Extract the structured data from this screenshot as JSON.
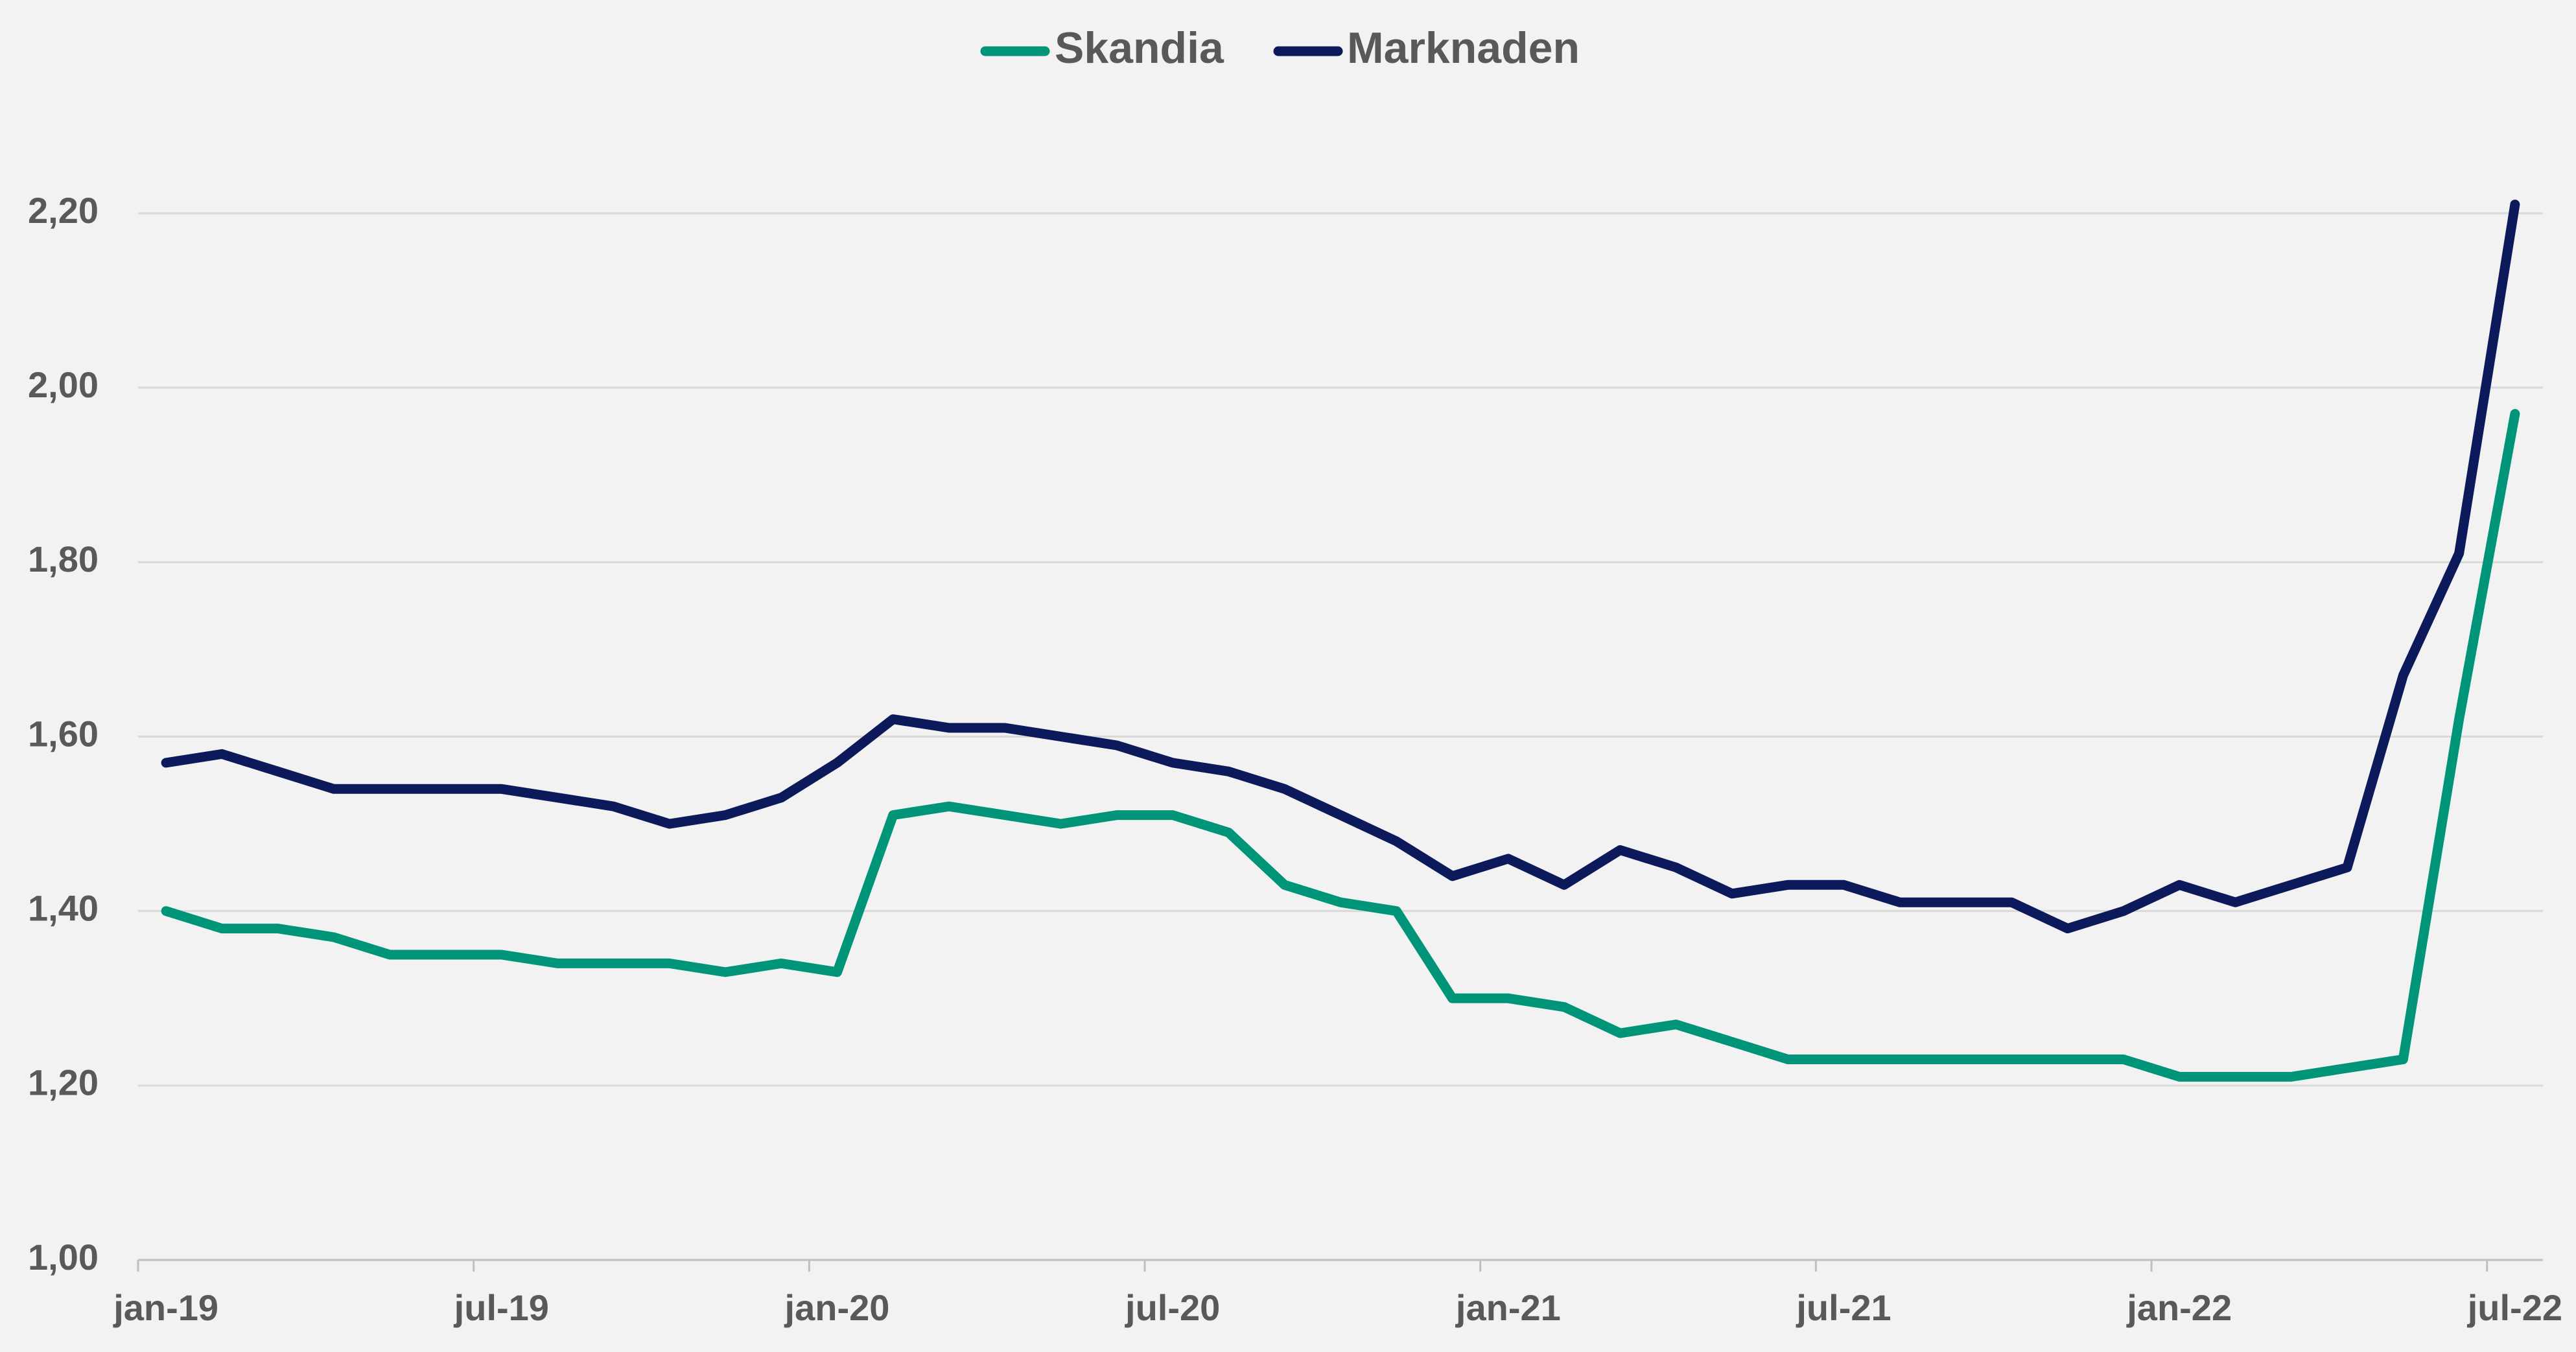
{
  "chart_data": {
    "type": "line",
    "categories": [
      "jan-19",
      null,
      null,
      null,
      null,
      null,
      "jul-19",
      null,
      null,
      null,
      null,
      null,
      "jan-20",
      null,
      null,
      null,
      null,
      null,
      "jul-20",
      null,
      null,
      null,
      null,
      null,
      "jan-21",
      null,
      null,
      null,
      null,
      null,
      "jul-21",
      null,
      null,
      null,
      null,
      null,
      "jan-22",
      null,
      null,
      null,
      null,
      null,
      "jul-22"
    ],
    "series": [
      {
        "name": "Skandia",
        "color": "#009579",
        "values": [
          1.4,
          1.38,
          1.38,
          1.37,
          1.35,
          1.35,
          1.35,
          1.34,
          1.34,
          1.34,
          1.33,
          1.34,
          1.33,
          1.51,
          1.52,
          1.51,
          1.5,
          1.51,
          1.51,
          1.49,
          1.43,
          1.41,
          1.4,
          1.3,
          1.3,
          1.29,
          1.26,
          1.27,
          1.25,
          1.23,
          1.23,
          1.23,
          1.23,
          1.23,
          1.23,
          1.23,
          1.21,
          1.21,
          1.21,
          1.22,
          1.23,
          1.62,
          1.97
        ]
      },
      {
        "name": "Marknaden",
        "color": "#0c1a5c",
        "values": [
          1.57,
          1.58,
          1.56,
          1.54,
          1.54,
          1.54,
          1.54,
          1.53,
          1.52,
          1.5,
          1.51,
          1.53,
          1.57,
          1.62,
          1.61,
          1.61,
          1.6,
          1.59,
          1.57,
          1.56,
          1.54,
          1.51,
          1.48,
          1.44,
          1.46,
          1.43,
          1.47,
          1.45,
          1.42,
          1.43,
          1.43,
          1.41,
          1.41,
          1.41,
          1.38,
          1.4,
          1.43,
          1.41,
          1.43,
          1.45,
          1.67,
          1.81,
          2.21
        ]
      }
    ],
    "ylim": [
      1.0,
      2.2
    ],
    "yticks": [
      {
        "value": 1.0,
        "label": "1,00"
      },
      {
        "value": 1.2,
        "label": "1,20"
      },
      {
        "value": 1.4,
        "label": "1,40"
      },
      {
        "value": 1.6,
        "label": "1,60"
      },
      {
        "value": 1.8,
        "label": "1,80"
      },
      {
        "value": 2.0,
        "label": "2,00"
      },
      {
        "value": 2.2,
        "label": "2,20"
      }
    ],
    "grid": true,
    "legend": "top"
  }
}
